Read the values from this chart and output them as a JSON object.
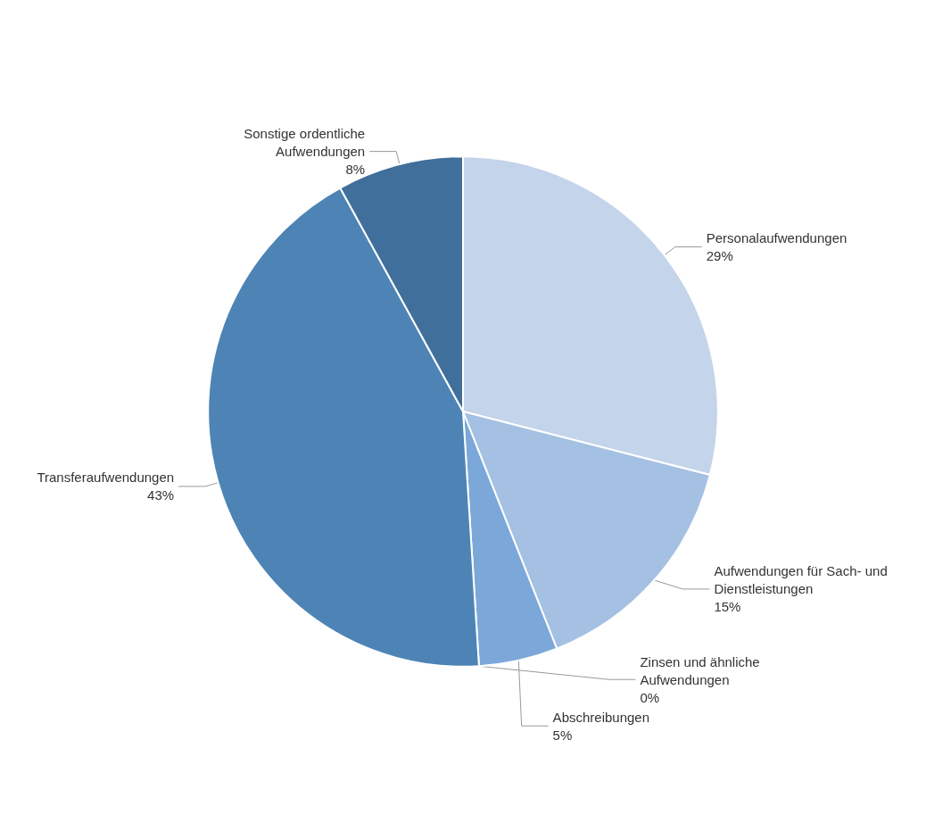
{
  "chart_data": {
    "type": "pie",
    "categories": [
      "Personalaufwendungen",
      "Aufwendungen für Sach- und Dienstleistungen",
      "Abschreibungen",
      "Zinsen und ähnliche Aufwendungen",
      "Transferaufwendungen",
      "Sonstige ordentliche Aufwendungen"
    ],
    "values": [
      29,
      15,
      5,
      0,
      43,
      8
    ],
    "value_labels": [
      "29%",
      "15%",
      "5%",
      "0%",
      "43%",
      "8%"
    ],
    "colors": [
      "#c4d4ea",
      "#a4c0e2",
      "#7ba8d8",
      "#5b8fc6",
      "#4e84b5",
      "#406f9b"
    ]
  }
}
